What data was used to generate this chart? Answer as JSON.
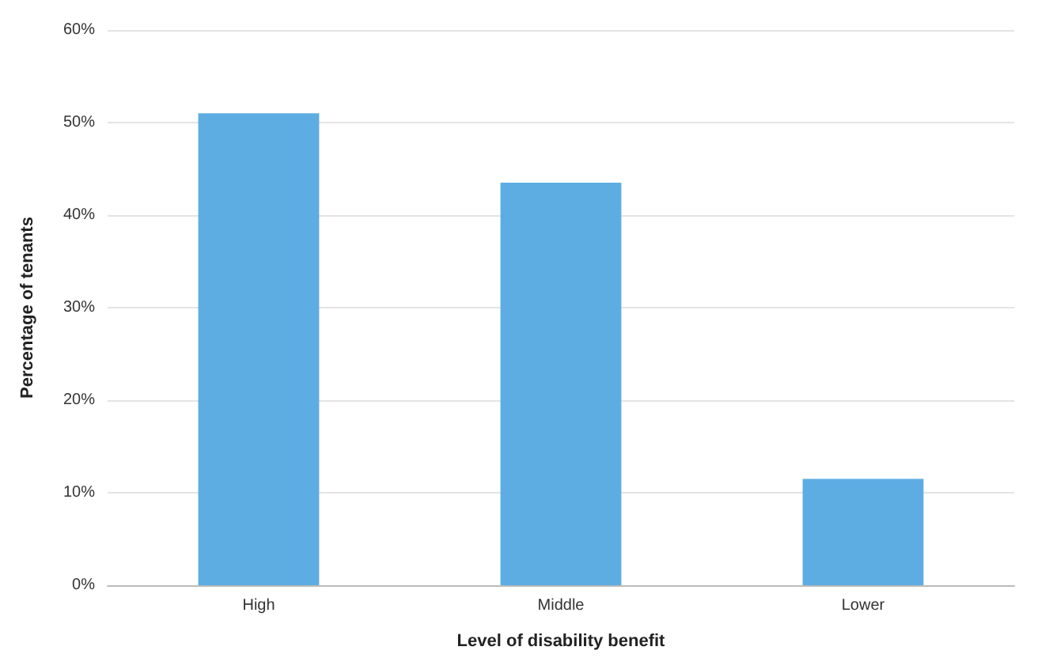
{
  "chart_data": {
    "type": "bar",
    "xlabel": "Level of disability benefit",
    "ylabel": "Percentage of tenants",
    "categories": [
      "High",
      "Middle",
      "Lower"
    ],
    "values": [
      51,
      43.5,
      11.5
    ],
    "color": "#5dade2",
    "ylim": [
      0,
      60
    ],
    "yticks": [
      {
        "value": 0,
        "label": "0%"
      },
      {
        "value": 10,
        "label": "10%"
      },
      {
        "value": 20,
        "label": "20%"
      },
      {
        "value": 30,
        "label": "30%"
      },
      {
        "value": 40,
        "label": "40%"
      },
      {
        "value": 50,
        "label": "50%"
      },
      {
        "value": 60,
        "label": "60%"
      }
    ],
    "grid": "y"
  }
}
